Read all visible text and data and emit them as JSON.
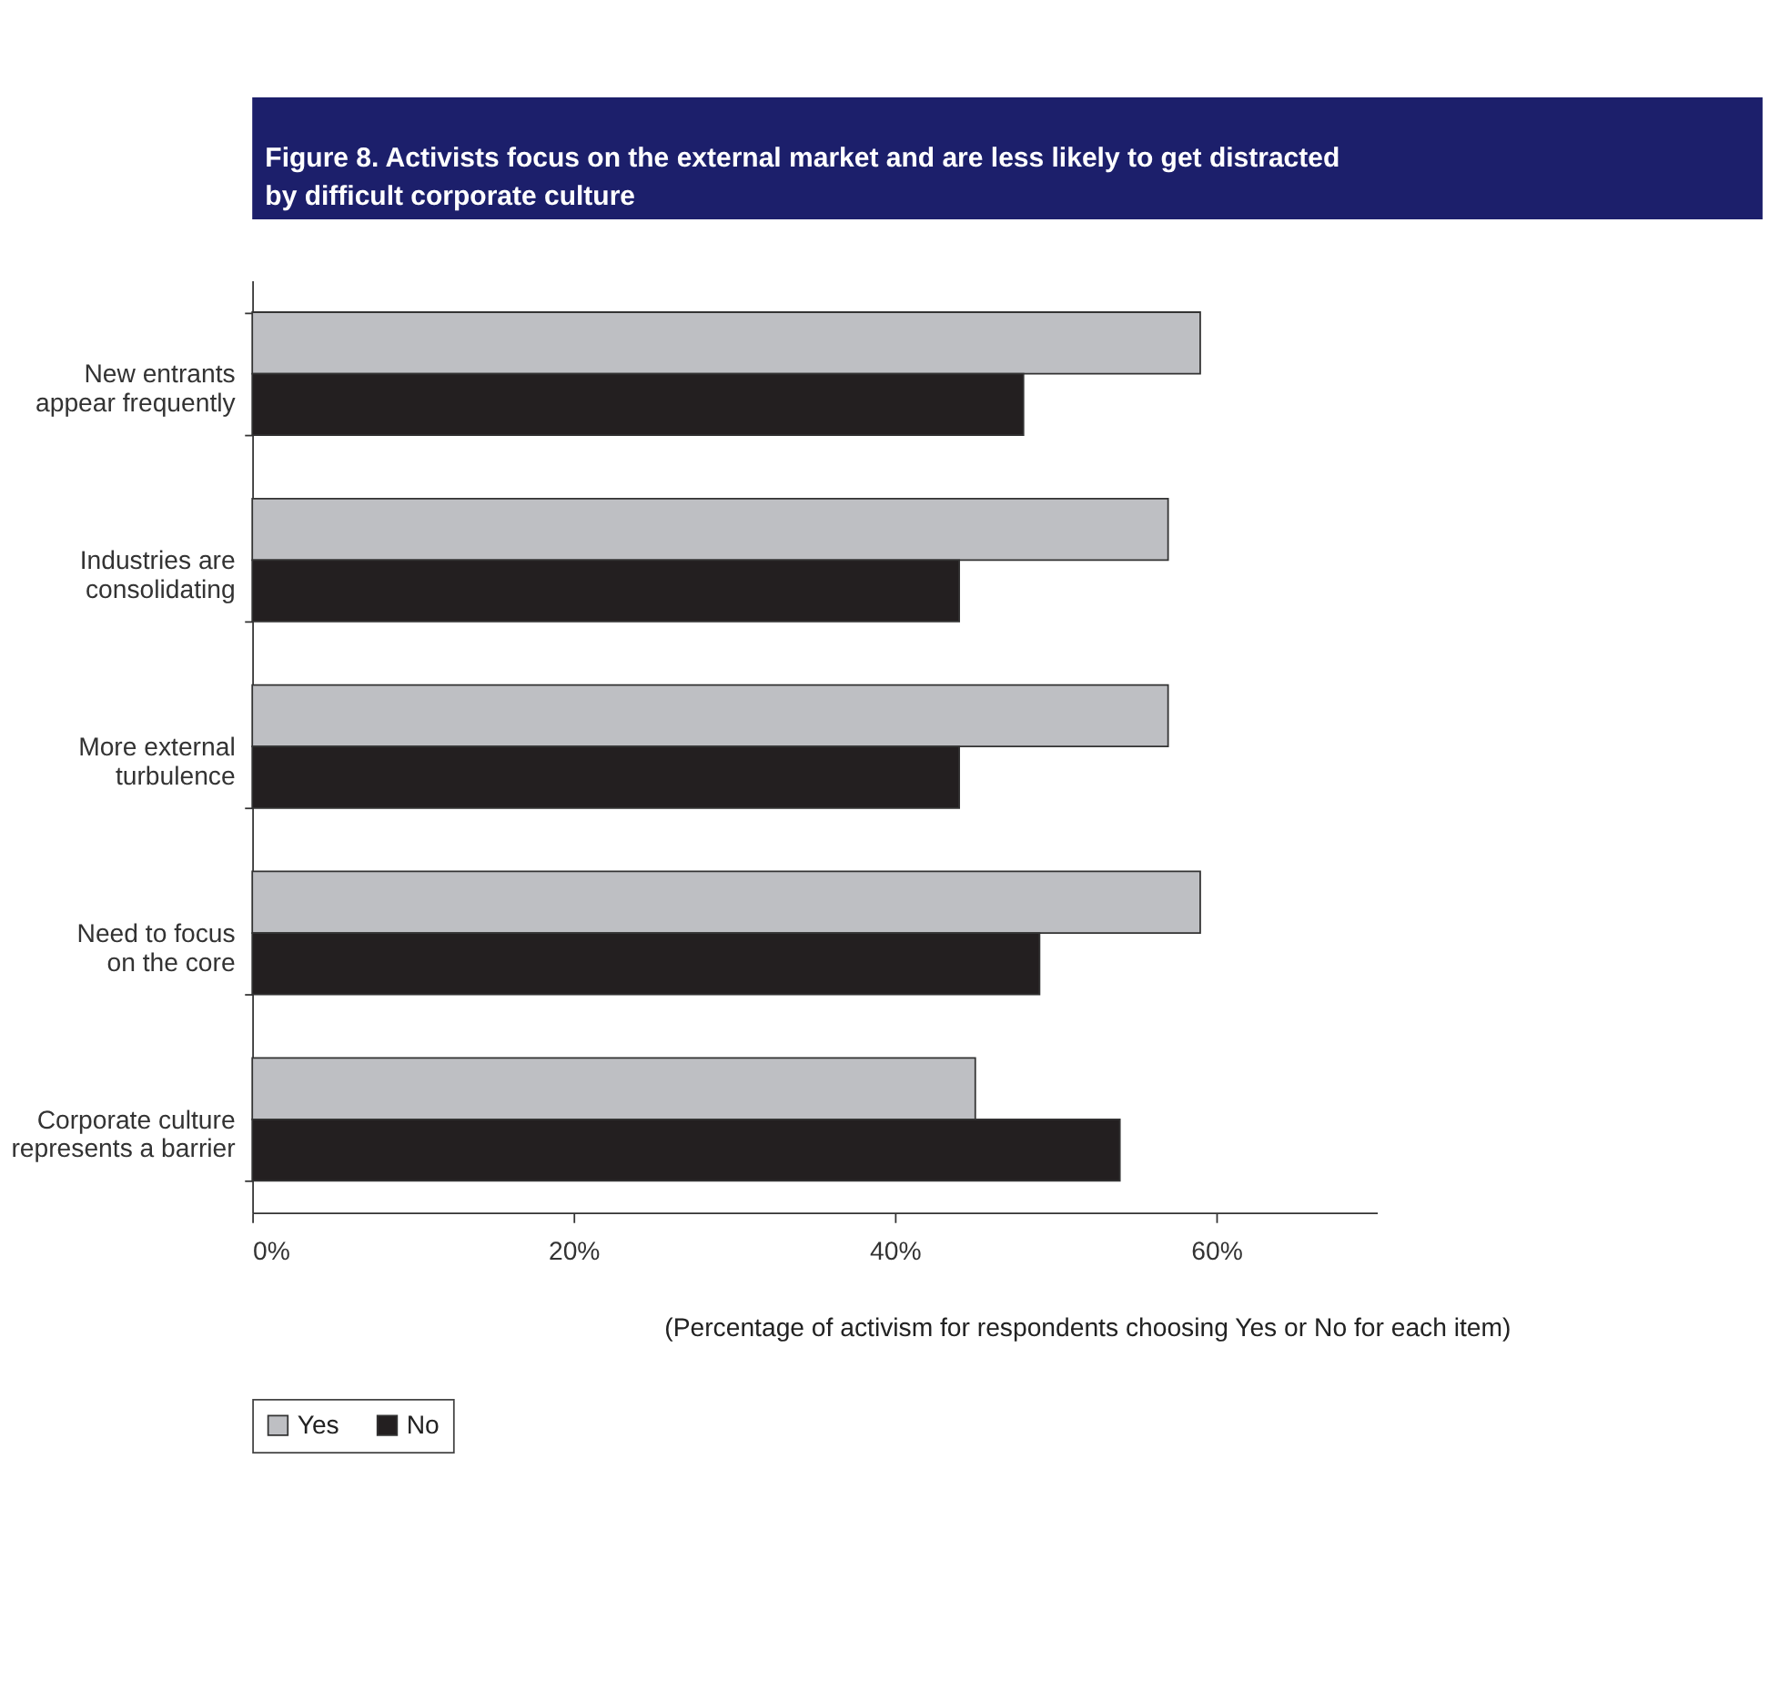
{
  "chart_data": {
    "type": "bar",
    "orientation": "horizontal",
    "title": "Figure 8. Activists focus on the external market and are less likely to get distracted by difficult corporate culture",
    "categories": [
      "New entrants appear frequently",
      "Industries are consolidating",
      "More external turbulence",
      "Need to focus on the core",
      "Corporate culture represents a barrier"
    ],
    "series": [
      {
        "name": "Yes",
        "color": "#bebfc3",
        "values": [
          59,
          57,
          57,
          59,
          45
        ]
      },
      {
        "name": "No",
        "color": "#231f20",
        "values": [
          48,
          44,
          44,
          49,
          54
        ]
      }
    ],
    "xlim": [
      0,
      70
    ],
    "xticks": [
      {
        "value": 0,
        "label": "0%"
      },
      {
        "value": 20,
        "label": "20%"
      },
      {
        "value": 40,
        "label": "40%"
      },
      {
        "value": 60,
        "label": "60%"
      }
    ],
    "grid": false,
    "legend": "bottom",
    "annotations": [
      "(Percentage of activism for respondents choosing Yes or No for each item)"
    ]
  }
}
